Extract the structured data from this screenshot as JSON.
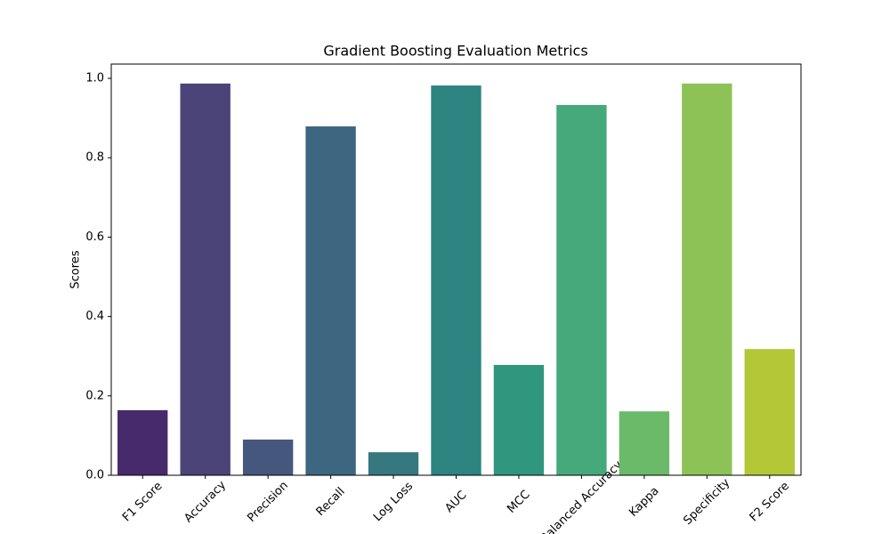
{
  "chart_data": {
    "type": "bar",
    "title": "Gradient Boosting Evaluation Metrics",
    "y_label": "Scores",
    "categories": [
      "F1 Score",
      "Accuracy",
      "Precision",
      "Recall",
      "Log Loss",
      "AUC",
      "MCC",
      "Balanced Accuracy",
      "Kappa",
      "Specificity",
      "F2 Score"
    ],
    "values": [
      0.164,
      0.987,
      0.09,
      0.879,
      0.058,
      0.982,
      0.278,
      0.933,
      0.161,
      0.987,
      0.318
    ],
    "colors": [
      "#472a6b",
      "#4a4478",
      "#46577e",
      "#3d6680",
      "#367780",
      "#2e8480",
      "#30977f",
      "#46a97b",
      "#6aba6a",
      "#8dc356",
      "#b4c737"
    ],
    "ylim": [
      0,
      1.036
    ],
    "yticks": [
      {
        "value": 0,
        "label": "0.0"
      },
      {
        "value": 0.2,
        "label": "0.2"
      },
      {
        "value": 0.4,
        "label": "0.4"
      },
      {
        "value": 0.6,
        "label": "0.6"
      },
      {
        "value": 0.8,
        "label": "0.8"
      },
      {
        "value": 1.0,
        "label": "1.0"
      }
    ],
    "grid": false
  }
}
